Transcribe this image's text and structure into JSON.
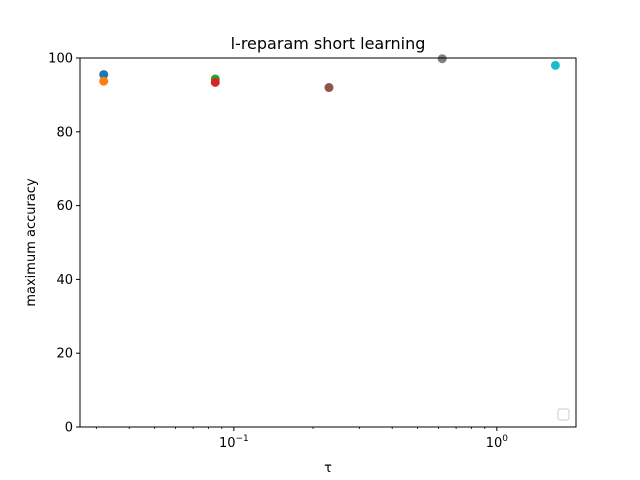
{
  "chart_data": {
    "type": "scatter",
    "title": "l-reparam short learning",
    "xlabel": "τ",
    "ylabel": "maximum accuracy",
    "xscale": "log",
    "xlim": [
      0.026,
      2.0
    ],
    "ylim": [
      0,
      100
    ],
    "grid": false,
    "legend": "lower-right (empty)",
    "y_ticks": [
      0,
      20,
      40,
      60,
      80,
      100
    ],
    "x_ticks": [
      {
        "value": 0.1,
        "base": "10",
        "exp": "−1"
      },
      {
        "value": 1.0,
        "base": "10",
        "exp": "0"
      }
    ],
    "points": [
      {
        "x": 0.032,
        "y": 95.5,
        "color": "#1f77b4"
      },
      {
        "x": 0.032,
        "y": 93.7,
        "color": "#ff7f0e"
      },
      {
        "x": 0.085,
        "y": 94.3,
        "color": "#2ca02c"
      },
      {
        "x": 0.085,
        "y": 93.4,
        "color": "#d62728"
      },
      {
        "x": 0.23,
        "y": 92.0,
        "color": "#8c564b"
      },
      {
        "x": 0.62,
        "y": 99.8,
        "color": "#7f7f7f"
      },
      {
        "x": 1.67,
        "y": 98.0,
        "color": "#17becf"
      }
    ]
  }
}
